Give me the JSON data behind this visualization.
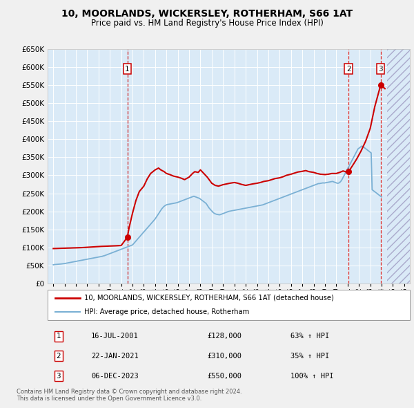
{
  "title": "10, MOORLANDS, WICKERSLEY, ROTHERHAM, S66 1AT",
  "subtitle": "Price paid vs. HM Land Registry's House Price Index (HPI)",
  "ylim": [
    0,
    650000
  ],
  "yticks": [
    0,
    50000,
    100000,
    150000,
    200000,
    250000,
    300000,
    350000,
    400000,
    450000,
    500000,
    550000,
    600000,
    650000
  ],
  "xlim_start": 1994.5,
  "xlim_end": 2026.5,
  "plot_bg_color": "#daeaf7",
  "fig_bg_color": "#f0f0f0",
  "grid_color": "#ffffff",
  "red_color": "#cc0000",
  "blue_color": "#7ab0d4",
  "hpi_years": [
    1995.0,
    1995.083,
    1995.167,
    1995.25,
    1995.333,
    1995.417,
    1995.5,
    1995.583,
    1995.667,
    1995.75,
    1995.833,
    1995.917,
    1996.0,
    1996.083,
    1996.167,
    1996.25,
    1996.333,
    1996.417,
    1996.5,
    1996.583,
    1996.667,
    1996.75,
    1996.833,
    1996.917,
    1997.0,
    1997.083,
    1997.167,
    1997.25,
    1997.333,
    1997.417,
    1997.5,
    1997.583,
    1997.667,
    1997.75,
    1997.833,
    1997.917,
    1998.0,
    1998.083,
    1998.167,
    1998.25,
    1998.333,
    1998.417,
    1998.5,
    1998.583,
    1998.667,
    1998.75,
    1998.833,
    1998.917,
    1999.0,
    1999.083,
    1999.167,
    1999.25,
    1999.333,
    1999.417,
    1999.5,
    1999.583,
    1999.667,
    1999.75,
    1999.833,
    1999.917,
    2000.0,
    2000.083,
    2000.167,
    2000.25,
    2000.333,
    2000.417,
    2000.5,
    2000.583,
    2000.667,
    2000.75,
    2000.833,
    2000.917,
    2001.0,
    2001.083,
    2001.167,
    2001.25,
    2001.333,
    2001.417,
    2001.5,
    2001.583,
    2001.667,
    2001.75,
    2001.833,
    2001.917,
    2002.0,
    2002.083,
    2002.167,
    2002.25,
    2002.333,
    2002.417,
    2002.5,
    2002.583,
    2002.667,
    2002.75,
    2002.833,
    2002.917,
    2003.0,
    2003.083,
    2003.167,
    2003.25,
    2003.333,
    2003.417,
    2003.5,
    2003.583,
    2003.667,
    2003.75,
    2003.833,
    2003.917,
    2004.0,
    2004.083,
    2004.167,
    2004.25,
    2004.333,
    2004.417,
    2004.5,
    2004.583,
    2004.667,
    2004.75,
    2004.833,
    2004.917,
    2005.0,
    2005.083,
    2005.167,
    2005.25,
    2005.333,
    2005.417,
    2005.5,
    2005.583,
    2005.667,
    2005.75,
    2005.833,
    2005.917,
    2006.0,
    2006.083,
    2006.167,
    2006.25,
    2006.333,
    2006.417,
    2006.5,
    2006.583,
    2006.667,
    2006.75,
    2006.833,
    2006.917,
    2007.0,
    2007.083,
    2007.167,
    2007.25,
    2007.333,
    2007.417,
    2007.5,
    2007.583,
    2007.667,
    2007.75,
    2007.833,
    2007.917,
    2008.0,
    2008.083,
    2008.167,
    2008.25,
    2008.333,
    2008.417,
    2008.5,
    2008.583,
    2008.667,
    2008.75,
    2008.833,
    2008.917,
    2009.0,
    2009.083,
    2009.167,
    2009.25,
    2009.333,
    2009.417,
    2009.5,
    2009.583,
    2009.667,
    2009.75,
    2009.833,
    2009.917,
    2010.0,
    2010.083,
    2010.167,
    2010.25,
    2010.333,
    2010.417,
    2010.5,
    2010.583,
    2010.667,
    2010.75,
    2010.833,
    2010.917,
    2011.0,
    2011.083,
    2011.167,
    2011.25,
    2011.333,
    2011.417,
    2011.5,
    2011.583,
    2011.667,
    2011.75,
    2011.833,
    2011.917,
    2012.0,
    2012.083,
    2012.167,
    2012.25,
    2012.333,
    2012.417,
    2012.5,
    2012.583,
    2012.667,
    2012.75,
    2012.833,
    2012.917,
    2013.0,
    2013.083,
    2013.167,
    2013.25,
    2013.333,
    2013.417,
    2013.5,
    2013.583,
    2013.667,
    2013.75,
    2013.833,
    2013.917,
    2014.0,
    2014.083,
    2014.167,
    2014.25,
    2014.333,
    2014.417,
    2014.5,
    2014.583,
    2014.667,
    2014.75,
    2014.833,
    2014.917,
    2015.0,
    2015.083,
    2015.167,
    2015.25,
    2015.333,
    2015.417,
    2015.5,
    2015.583,
    2015.667,
    2015.75,
    2015.833,
    2015.917,
    2016.0,
    2016.083,
    2016.167,
    2016.25,
    2016.333,
    2016.417,
    2016.5,
    2016.583,
    2016.667,
    2016.75,
    2016.833,
    2016.917,
    2017.0,
    2017.083,
    2017.167,
    2017.25,
    2017.333,
    2017.417,
    2017.5,
    2017.583,
    2017.667,
    2017.75,
    2017.833,
    2017.917,
    2018.0,
    2018.083,
    2018.167,
    2018.25,
    2018.333,
    2018.417,
    2018.5,
    2018.583,
    2018.667,
    2018.75,
    2018.833,
    2018.917,
    2019.0,
    2019.083,
    2019.167,
    2019.25,
    2019.333,
    2019.417,
    2019.5,
    2019.583,
    2019.667,
    2019.75,
    2019.833,
    2019.917,
    2020.0,
    2020.083,
    2020.167,
    2020.25,
    2020.333,
    2020.417,
    2020.5,
    2020.583,
    2020.667,
    2020.75,
    2020.833,
    2020.917,
    2021.0,
    2021.083,
    2021.167,
    2021.25,
    2021.333,
    2021.417,
    2021.5,
    2021.583,
    2021.667,
    2021.75,
    2021.833,
    2021.917,
    2022.0,
    2022.083,
    2022.167,
    2022.25,
    2022.333,
    2022.417,
    2022.5,
    2022.583,
    2022.667,
    2022.75,
    2022.833,
    2022.917,
    2023.0,
    2023.083,
    2023.167,
    2023.25,
    2023.333,
    2023.417,
    2023.5,
    2023.583,
    2023.667,
    2023.75,
    2023.833,
    2023.917,
    2024.0
  ],
  "hpi_values": [
    52000,
    52500,
    52800,
    53000,
    53200,
    53500,
    53700,
    54000,
    54200,
    54500,
    54800,
    55000,
    55500,
    56000,
    56500,
    57000,
    57500,
    58000,
    58500,
    59000,
    59500,
    60000,
    60500,
    61000,
    61500,
    62000,
    62500,
    63000,
    63500,
    64000,
    64500,
    65000,
    65500,
    66000,
    66500,
    67000,
    67500,
    68000,
    68500,
    69000,
    69500,
    70000,
    70500,
    71000,
    71500,
    72000,
    72500,
    73000,
    73500,
    74000,
    74500,
    75000,
    75500,
    76500,
    77000,
    78000,
    79000,
    80000,
    81000,
    82000,
    83000,
    84000,
    85000,
    86000,
    87000,
    88000,
    89000,
    90000,
    91000,
    92000,
    93000,
    94000,
    95000,
    96000,
    97000,
    98000,
    99000,
    100000,
    101000,
    102000,
    103000,
    104000,
    105000,
    106000,
    107000,
    110000,
    113000,
    116000,
    119000,
    122000,
    125000,
    128000,
    131000,
    134000,
    137000,
    140000,
    143000,
    146000,
    149000,
    152000,
    155000,
    158000,
    161000,
    164000,
    167000,
    170000,
    173000,
    176000,
    179000,
    183000,
    187000,
    191000,
    195000,
    199000,
    203000,
    207000,
    210000,
    213000,
    215000,
    217000,
    218000,
    219000,
    219500,
    220000,
    220500,
    221000,
    221500,
    222000,
    222500,
    223000,
    223500,
    224000,
    225000,
    226000,
    227000,
    228000,
    229000,
    230000,
    231000,
    232000,
    233000,
    234000,
    235000,
    236000,
    237000,
    238000,
    239000,
    240000,
    241000,
    242000,
    241000,
    240000,
    239000,
    238000,
    237000,
    236000,
    234000,
    232000,
    230000,
    228000,
    226000,
    224000,
    222000,
    218000,
    214000,
    210000,
    207000,
    204000,
    201000,
    198000,
    196000,
    194000,
    193000,
    192000,
    191500,
    191000,
    190500,
    191000,
    192000,
    193000,
    194000,
    195000,
    196000,
    197000,
    198000,
    199000,
    200000,
    200500,
    201000,
    201500,
    202000,
    202500,
    203000,
    203500,
    204000,
    204500,
    205000,
    205500,
    206000,
    206500,
    207000,
    207500,
    208000,
    208500,
    209000,
    209500,
    210000,
    210500,
    211000,
    211500,
    212000,
    212500,
    213000,
    213500,
    214000,
    214500,
    215000,
    215500,
    216000,
    216500,
    217000,
    217500,
    218000,
    219000,
    220000,
    221000,
    222000,
    223000,
    224000,
    225000,
    226000,
    227000,
    228000,
    229000,
    230000,
    231000,
    232000,
    233000,
    234000,
    235000,
    236000,
    237000,
    238000,
    239000,
    240000,
    241000,
    242000,
    243000,
    244000,
    245000,
    246000,
    247000,
    248000,
    249000,
    250000,
    251000,
    252000,
    253000,
    254000,
    255000,
    256000,
    257000,
    258000,
    259000,
    260000,
    261000,
    262000,
    263000,
    264000,
    265000,
    266000,
    267000,
    268000,
    269000,
    270000,
    271000,
    272000,
    273000,
    274000,
    275000,
    276000,
    277000,
    277000,
    277500,
    278000,
    278500,
    279000,
    278500,
    279000,
    279500,
    280000,
    280500,
    281000,
    281500,
    282000,
    282500,
    283000,
    282000,
    281000,
    280000,
    279000,
    278000,
    278000,
    279000,
    281000,
    284000,
    288000,
    293000,
    298000,
    303000,
    308000,
    313000,
    318000,
    323000,
    328000,
    333000,
    338000,
    343000,
    348000,
    353000,
    358000,
    363000,
    368000,
    373000,
    375000,
    377000,
    379000,
    381000,
    380000,
    378000,
    376000,
    374000,
    372000,
    370000,
    368000,
    366000,
    364000,
    362000,
    260000,
    258000,
    256000,
    254000,
    252000,
    250000,
    248000,
    246000,
    244000,
    242000,
    240000
  ],
  "price_years": [
    1995.0,
    1995.25,
    1995.5,
    1995.75,
    1996.0,
    1996.25,
    1996.5,
    1996.75,
    1997.0,
    1997.25,
    1997.5,
    1997.75,
    1998.0,
    1998.25,
    1998.5,
    1998.75,
    1999.0,
    1999.25,
    1999.5,
    1999.75,
    2000.0,
    2000.25,
    2000.5,
    2000.75,
    2001.0,
    2001.25,
    2001.54,
    2001.7,
    2002.0,
    2002.3,
    2002.6,
    2003.0,
    2003.3,
    2003.6,
    2004.0,
    2004.3,
    2004.5,
    2004.8,
    2005.0,
    2005.3,
    2005.6,
    2006.0,
    2006.3,
    2006.6,
    2007.0,
    2007.3,
    2007.5,
    2007.8,
    2008.0,
    2008.3,
    2008.6,
    2009.0,
    2009.3,
    2009.6,
    2010.0,
    2010.3,
    2010.6,
    2011.0,
    2011.3,
    2011.6,
    2012.0,
    2012.3,
    2012.6,
    2013.0,
    2013.3,
    2013.6,
    2014.0,
    2014.3,
    2014.6,
    2015.0,
    2015.3,
    2015.6,
    2016.0,
    2016.3,
    2016.6,
    2017.0,
    2017.3,
    2017.6,
    2018.0,
    2018.3,
    2018.6,
    2019.0,
    2019.3,
    2019.6,
    2020.0,
    2020.3,
    2020.6,
    2021.0,
    2021.08,
    2021.4,
    2021.8,
    2022.2,
    2022.6,
    2023.0,
    2023.4,
    2023.92,
    2024.3
  ],
  "price_values": [
    97000,
    97200,
    97500,
    97800,
    98000,
    98300,
    98500,
    98800,
    99000,
    99300,
    99600,
    100000,
    100500,
    101000,
    101500,
    102000,
    102500,
    103000,
    103300,
    103600,
    104000,
    104300,
    104600,
    105000,
    105500,
    116000,
    128000,
    155000,
    195000,
    230000,
    255000,
    270000,
    290000,
    305000,
    315000,
    320000,
    315000,
    310000,
    305000,
    302000,
    298000,
    295000,
    292000,
    288000,
    295000,
    305000,
    310000,
    308000,
    315000,
    305000,
    295000,
    278000,
    272000,
    270000,
    274000,
    276000,
    278000,
    280000,
    278000,
    275000,
    272000,
    274000,
    276000,
    278000,
    280000,
    283000,
    285000,
    288000,
    291000,
    293000,
    296000,
    300000,
    303000,
    306000,
    309000,
    311000,
    313000,
    310000,
    308000,
    305000,
    303000,
    302000,
    303000,
    305000,
    305000,
    308000,
    312000,
    308000,
    310000,
    325000,
    345000,
    368000,
    395000,
    430000,
    490000,
    550000,
    540000
  ],
  "sales": [
    {
      "num": 1,
      "year": 2001.54,
      "price": 128000,
      "date": "16-JUL-2001",
      "price_str": "£128,000",
      "pct": "63%",
      "dir": "↑"
    },
    {
      "num": 2,
      "year": 2021.08,
      "price": 310000,
      "date": "22-JAN-2021",
      "price_str": "£310,000",
      "pct": "35%",
      "dir": "↑"
    },
    {
      "num": 3,
      "year": 2023.92,
      "price": 550000,
      "date": "06-DEC-2023",
      "price_str": "£550,000",
      "pct": "100%",
      "dir": "↑"
    }
  ],
  "legend_line1": "10, MOORLANDS, WICKERSLEY, ROTHERHAM, S66 1AT (detached house)",
  "legend_line2": "HPI: Average price, detached house, Rotherham",
  "footer": "Contains HM Land Registry data © Crown copyright and database right 2024.\nThis data is licensed under the Open Government Licence v3.0.",
  "xtick_years": [
    1995,
    1996,
    1997,
    1998,
    1999,
    2000,
    2001,
    2002,
    2003,
    2004,
    2005,
    2006,
    2007,
    2008,
    2009,
    2010,
    2011,
    2012,
    2013,
    2014,
    2015,
    2016,
    2017,
    2018,
    2019,
    2020,
    2021,
    2022,
    2023,
    2024,
    2025,
    2026
  ]
}
